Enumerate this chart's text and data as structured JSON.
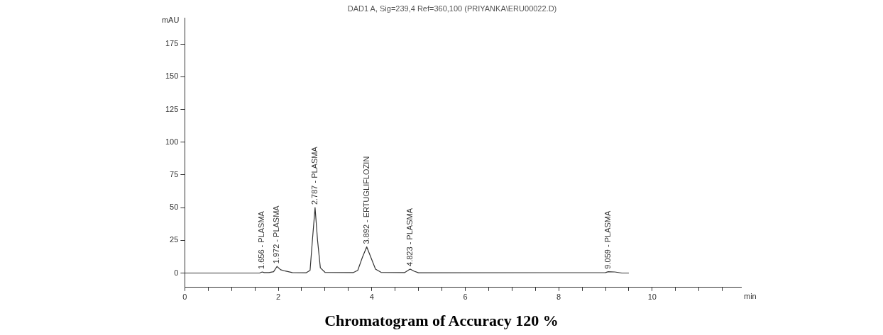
{
  "chart_data": {
    "type": "line",
    "title": "DAD1 A, Sig=239,4 Ref=360,100 (PRIYANKA\\ERU00022.D)",
    "xlabel": "min",
    "ylabel": "mAU",
    "x": [
      0,
      1.6,
      1.656,
      1.7,
      1.8,
      1.9,
      1.972,
      2.05,
      2.15,
      2.3,
      2.6,
      2.68,
      2.73,
      2.787,
      2.84,
      2.9,
      3.0,
      3.6,
      3.7,
      3.8,
      3.892,
      3.98,
      4.08,
      4.2,
      4.7,
      4.8,
      4.823,
      4.9,
      5.0,
      9.0,
      9.059,
      9.2,
      9.35,
      9.5
    ],
    "series": [
      {
        "color": "#333333",
        "values": [
          0,
          0,
          0.8,
          0.3,
          0.3,
          1,
          5,
          2.5,
          1.5,
          0.3,
          0.2,
          2,
          25,
          50,
          25,
          4,
          0.5,
          0.3,
          2,
          12,
          20,
          12,
          3,
          0.5,
          0.3,
          2.5,
          3,
          1.5,
          0.2,
          0.3,
          1,
          0.8,
          0,
          0
        ]
      }
    ],
    "xlim": [
      0,
      11.9
    ],
    "ylim": [
      -11,
      195
    ],
    "xticks": [
      0,
      {
        "value": 0.5,
        "label": null
      },
      {
        "value": 1,
        "label": null
      },
      {
        "value": 1.5,
        "label": null
      },
      2,
      {
        "value": 2.5,
        "label": null
      },
      {
        "value": 3,
        "label": null
      },
      {
        "value": 3.5,
        "label": null
      },
      4,
      {
        "value": 4.5,
        "label": null
      },
      {
        "value": 5,
        "label": null
      },
      {
        "value": 5.5,
        "label": null
      },
      6,
      {
        "value": 6.5,
        "label": null
      },
      {
        "value": 7,
        "label": null
      },
      {
        "value": 7.5,
        "label": null
      },
      8,
      {
        "value": 8.5,
        "label": null
      },
      {
        "value": 9,
        "label": null
      },
      {
        "value": 9.5,
        "label": null
      },
      10,
      {
        "value": 10.5,
        "label": null
      },
      {
        "value": 11,
        "label": null
      },
      {
        "value": 11.5,
        "label": null
      }
    ],
    "yticks": [
      0,
      25,
      50,
      75,
      100,
      125,
      150,
      175
    ],
    "grid": false,
    "legend": false,
    "marker": "none",
    "line_style": "solid",
    "annotations": [
      {
        "text": "1.656 - PLASMA",
        "x": 1.656,
        "y": 0.8
      },
      {
        "text": "1.972 - PLASMA",
        "x": 1.972,
        "y": 5
      },
      {
        "text": "2.787 - PLASMA",
        "x": 2.787,
        "y": 50
      },
      {
        "text": "3.892 - ERTUGLIFLOZIN",
        "x": 3.892,
        "y": 20
      },
      {
        "text": "4.823 - PLASMA",
        "x": 4.823,
        "y": 3
      },
      {
        "text": "9.059 - PLASMA",
        "x": 9.059,
        "y": 1
      },
      "Chromatogram of Accuracy 120 %"
    ]
  }
}
